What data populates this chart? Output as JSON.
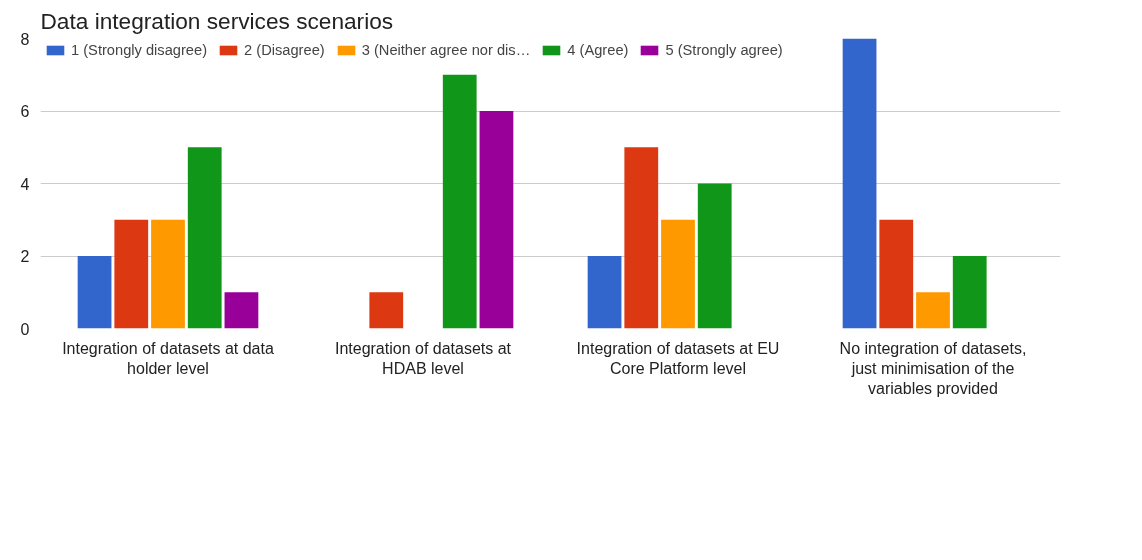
{
  "chart_data": {
    "type": "bar",
    "title": "Data integration services scenarios",
    "categories": [
      "Integration of datasets at data\nholder level",
      "Integration of datasets at\nHDAB level",
      "Integration of datasets at EU\nCore Platform level",
      "No integration of datasets,\njust minimisation of the\nvariables provided"
    ],
    "series": [
      {
        "name": "1 (Strongly disagree)",
        "color": "#3366cc",
        "values": [
          2,
          0,
          2,
          8
        ]
      },
      {
        "name": "2 (Disagree)",
        "color": "#dc3912",
        "values": [
          3,
          1,
          5,
          3
        ]
      },
      {
        "name": "3 (Neither agree nor dis…",
        "color": "#ff9900",
        "values": [
          3,
          0,
          3,
          1
        ]
      },
      {
        "name": "4 (Agree)",
        "color": "#109618",
        "values": [
          5,
          7,
          4,
          2
        ]
      },
      {
        "name": "5 (Strongly agree)",
        "color": "#990099",
        "values": [
          1,
          6,
          0,
          0
        ]
      }
    ],
    "ylim": [
      0,
      8
    ],
    "yticks": [
      0,
      2,
      4,
      6,
      8
    ],
    "grid": "y",
    "legend": "top"
  }
}
